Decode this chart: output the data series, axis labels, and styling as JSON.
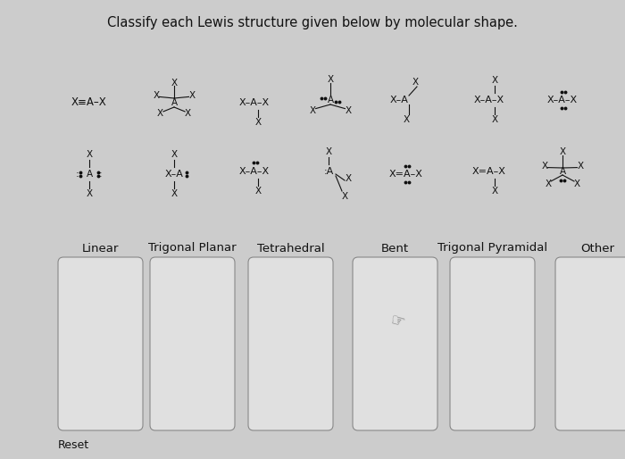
{
  "title": "Classify each Lewis structure given below by molecular shape.",
  "title_fontsize": 10.5,
  "bg_color": "#cccccc",
  "box_bg_color": "#e0e0e0",
  "box_border_color": "#888888",
  "text_color": "#111111",
  "categories": [
    "Linear",
    "Trigonal Planar",
    "Tetrahedral",
    "Bent",
    "Trigonal Pyramidal",
    "Other"
  ],
  "category_fontsize": 9.5,
  "reset_label": "Reset",
  "figsize": [
    7.0,
    5.14
  ],
  "dpi": 100
}
